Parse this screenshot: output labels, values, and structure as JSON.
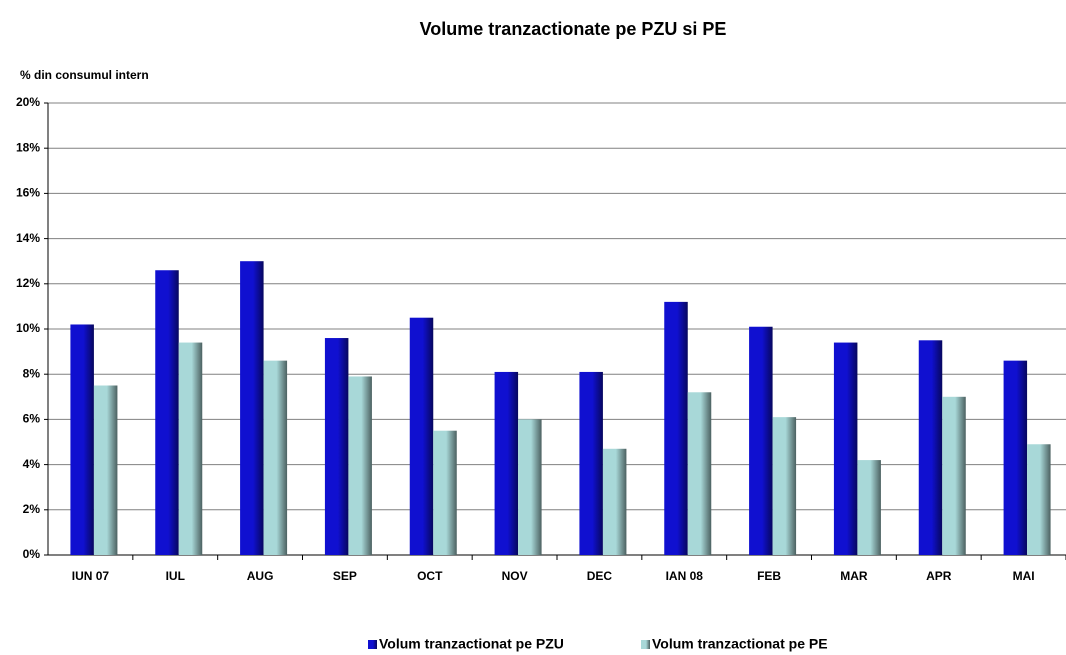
{
  "chart_data": {
    "type": "bar",
    "title": "Volume tranzactionate pe PZU si PE",
    "y_label": "% din consumul intern",
    "categories": [
      "IUN 07",
      "IUL",
      "AUG",
      "SEP",
      "OCT",
      "NOV",
      "DEC",
      "IAN 08",
      "FEB",
      "MAR",
      "APR",
      "MAI"
    ],
    "series": [
      {
        "name": "Volum tranzactionat pe PZU",
        "color": "#1010d0",
        "values": [
          10.2,
          12.6,
          13.0,
          9.6,
          10.5,
          8.1,
          8.1,
          11.2,
          10.1,
          9.4,
          9.5,
          8.6
        ]
      },
      {
        "name": "Volum tranzactionat pe PE",
        "color": "#a8d8d8",
        "values": [
          7.5,
          9.4,
          8.6,
          7.9,
          5.5,
          6.0,
          4.7,
          7.2,
          6.1,
          4.2,
          7.0,
          4.9
        ]
      }
    ],
    "ylim": [
      0,
      20
    ],
    "yticks": [
      {
        "value": 0,
        "label": "0%"
      },
      {
        "value": 2,
        "label": "2%"
      },
      {
        "value": 4,
        "label": "4%"
      },
      {
        "value": 6,
        "label": "6%"
      },
      {
        "value": 8,
        "label": "8%"
      },
      {
        "value": 10,
        "label": "10%"
      },
      {
        "value": 12,
        "label": "12%"
      },
      {
        "value": 14,
        "label": "14%"
      },
      {
        "value": 16,
        "label": "16%"
      },
      {
        "value": 18,
        "label": "18%"
      },
      {
        "value": 20,
        "label": "20%"
      }
    ],
    "grid": true,
    "legend": "bottom"
  }
}
